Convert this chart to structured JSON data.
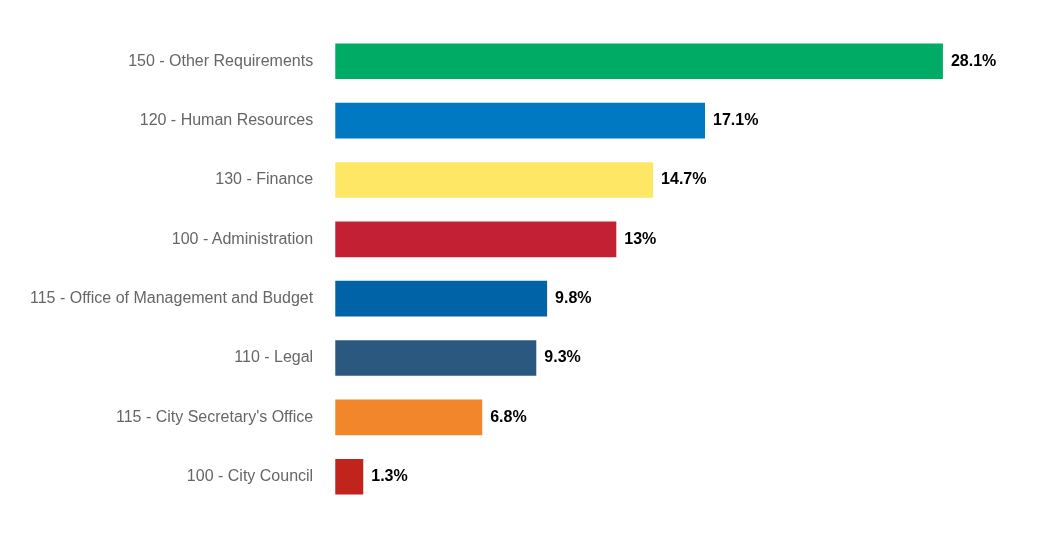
{
  "chart_data": {
    "type": "bar",
    "orientation": "horizontal",
    "categories": [
      "150 - Other Requirements",
      "120 - Human Resources",
      "130 - Finance",
      "100 - Administration",
      "115 - Office of Management and Budget",
      "110 - Legal",
      "115 - City Secretary's Office",
      "100 - City Council"
    ],
    "values": [
      28.1,
      17.1,
      14.7,
      13,
      9.8,
      9.3,
      6.8,
      1.3
    ],
    "value_labels": [
      "28.1%",
      "17.1%",
      "14.7%",
      "13%",
      "9.8%",
      "9.3%",
      "6.8%",
      "1.3%"
    ],
    "colors": [
      "#00ab66",
      "#0079c2",
      "#ffe766",
      "#c32034",
      "#0063a8",
      "#2b587f",
      "#f1862b",
      "#c0241c"
    ],
    "grid": false,
    "legend": false
  }
}
